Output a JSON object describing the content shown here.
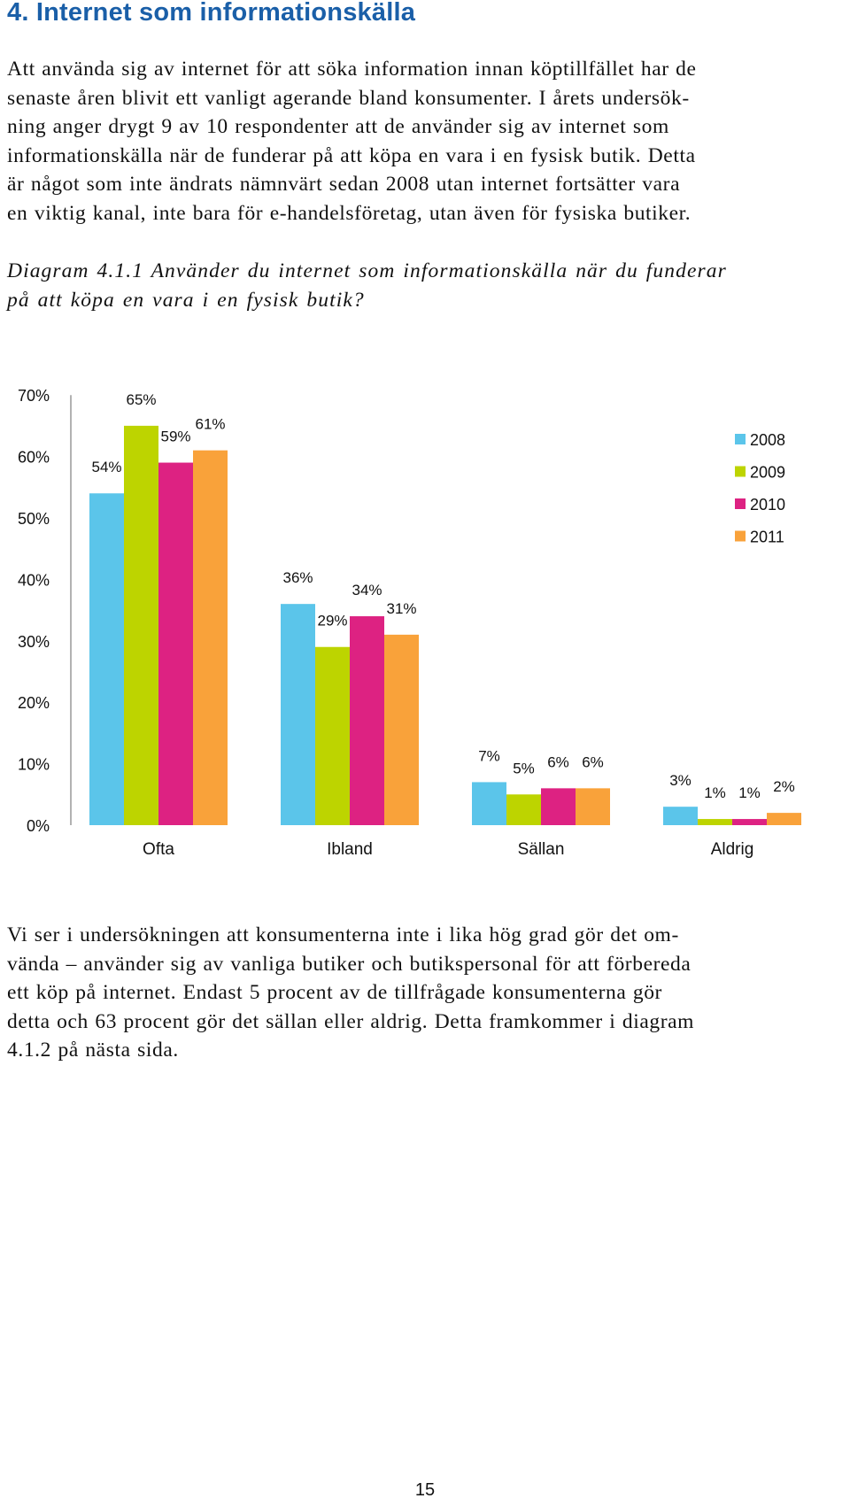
{
  "heading": "4. Internet som informationskälla",
  "intro_lines": [
    "Att använda sig av internet för att söka information innan köptillfället har de",
    "senaste åren blivit ett vanligt agerande bland konsumenter. I årets undersök-",
    "ning anger drygt 9 av 10 respondenter att de använder sig av internet som",
    "informationskälla när de funderar på att köpa en vara i en fysisk butik. Detta",
    "är något som inte ändrats nämnvärt sedan 2008 utan internet fortsätter vara",
    "en viktig kanal, inte bara för e-handelsföretag, utan även för fysiska butiker."
  ],
  "caption_lines": [
    "Diagram 4.1.1 Använder du internet som informationskälla när du funderar",
    "på att köpa en vara i en fysisk butik?"
  ],
  "chart_data": {
    "type": "bar",
    "title": "",
    "xlabel": "",
    "ylabel": "",
    "categories": [
      "Ofta",
      "Ibland",
      "Sällan",
      "Aldrig"
    ],
    "series": [
      {
        "name": "2008",
        "color": "#5bc5ea",
        "values": [
          54,
          36,
          7,
          3
        ],
        "labels": [
          "54%",
          "36%",
          "7%",
          "3%"
        ]
      },
      {
        "name": "2009",
        "color": "#bdd400",
        "values": [
          65,
          29,
          5,
          1
        ],
        "labels": [
          "65%",
          "29%",
          "5%",
          "1%"
        ]
      },
      {
        "name": "2010",
        "color": "#dd2282",
        "values": [
          59,
          34,
          6,
          1
        ],
        "labels": [
          "59%",
          "34%",
          "6%",
          "1%"
        ]
      },
      {
        "name": "2011",
        "color": "#f9a23a",
        "values": [
          61,
          31,
          6,
          2
        ],
        "labels": [
          "61%",
          "31%",
          "6%",
          "2%"
        ]
      }
    ],
    "ylim": [
      0,
      70
    ],
    "yticks": [
      0,
      10,
      20,
      30,
      40,
      50,
      60,
      70
    ],
    "ytick_labels": [
      "0%",
      "10%",
      "20%",
      "30%",
      "40%",
      "50%",
      "60%",
      "70%"
    ],
    "grid": false,
    "legend_position": "right"
  },
  "closing_lines": [
    "Vi ser i undersökningen att konsumenterna inte i lika hög grad gör det om-",
    "vända – använder sig av vanliga butiker och butikspersonal för att förbereda",
    "ett köp på internet. Endast 5 procent av de tillfrågade konsumenterna gör",
    "detta och 63 procent gör det sällan eller aldrig. Detta framkommer i diagram",
    "4.1.2 på nästa sida."
  ],
  "page_number": "15"
}
